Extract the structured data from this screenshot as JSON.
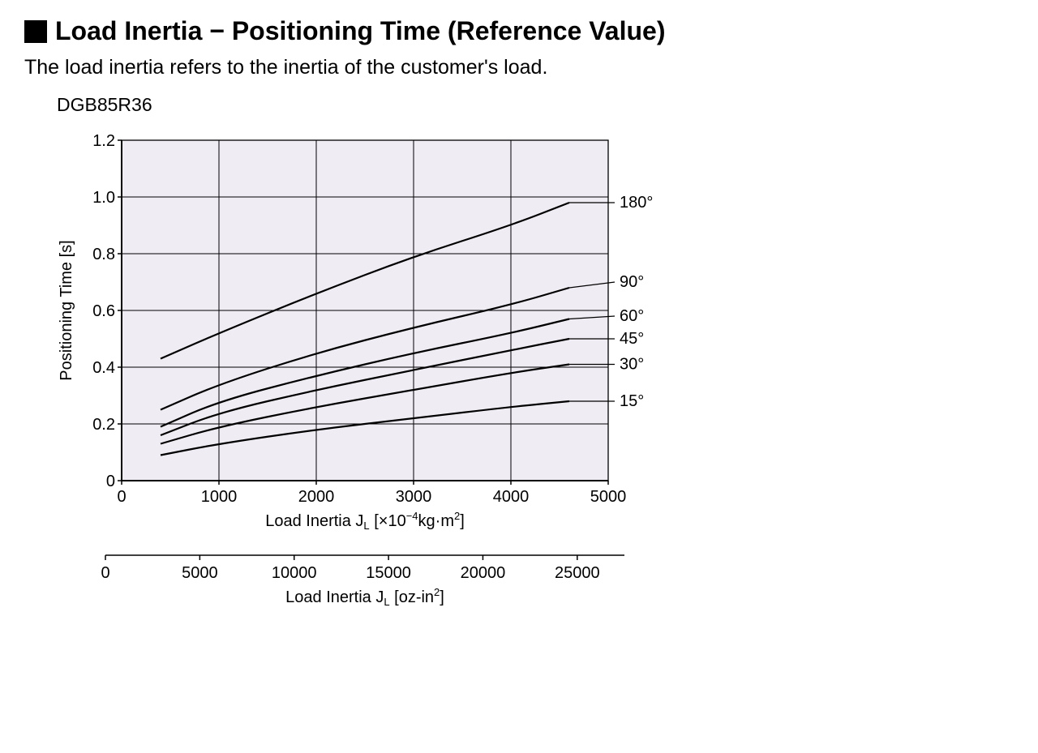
{
  "title": "Load Inertia − Positioning Time (Reference Value)",
  "subtitle": "The load inertia refers to the inertia of the customer's load.",
  "model": "DGB85R36",
  "chart": {
    "type": "line",
    "background_color": "#f0ecf3",
    "grid_color": "#000000",
    "axis_color": "#000000",
    "line_color": "#000000",
    "line_width": 2.2,
    "ylabel": "Positioning Time [s]",
    "ylabel_fontsize": 20,
    "ylim": [
      0,
      1.2
    ],
    "yticks": [
      0,
      0.2,
      0.4,
      0.6,
      0.8,
      1.0,
      1.2
    ],
    "ytick_labels": [
      "0",
      "0.2",
      "0.4",
      "0.6",
      "0.8",
      "1.0",
      "1.2"
    ],
    "tick_fontsize": 20,
    "x_primary": {
      "label": "Load Inertia JL [×10⁻⁴kg·m²]",
      "label_fontsize": 20,
      "lim": [
        0,
        5000
      ],
      "ticks": [
        0,
        1000,
        2000,
        3000,
        4000,
        5000
      ],
      "tick_labels": [
        "0",
        "1000",
        "2000",
        "3000",
        "4000",
        "5000"
      ]
    },
    "x_secondary": {
      "label": "Load Inertia JL [oz-in²]",
      "label_fontsize": 20,
      "lim": [
        0,
        27500
      ],
      "ticks": [
        0,
        5000,
        10000,
        15000,
        20000,
        25000
      ],
      "tick_labels": [
        "0",
        "5000",
        "10000",
        "15000",
        "20000",
        "25000"
      ]
    },
    "series": [
      {
        "label": "180°",
        "label_y": 0.98,
        "points": [
          [
            400,
            0.43
          ],
          [
            1000,
            0.52
          ],
          [
            2000,
            0.66
          ],
          [
            3000,
            0.79
          ],
          [
            4000,
            0.9
          ],
          [
            4600,
            0.98
          ]
        ]
      },
      {
        "label": "90°",
        "label_y": 0.7,
        "points": [
          [
            400,
            0.25
          ],
          [
            1000,
            0.34
          ],
          [
            2000,
            0.45
          ],
          [
            3000,
            0.54
          ],
          [
            4000,
            0.62
          ],
          [
            4600,
            0.68
          ]
        ]
      },
      {
        "label": "60°",
        "label_y": 0.58,
        "points": [
          [
            400,
            0.19
          ],
          [
            1000,
            0.28
          ],
          [
            2000,
            0.37
          ],
          [
            3000,
            0.45
          ],
          [
            4000,
            0.52
          ],
          [
            4600,
            0.57
          ]
        ]
      },
      {
        "label": "45°",
        "label_y": 0.5,
        "points": [
          [
            400,
            0.16
          ],
          [
            1000,
            0.24
          ],
          [
            2000,
            0.32
          ],
          [
            3000,
            0.39
          ],
          [
            4000,
            0.46
          ],
          [
            4600,
            0.5
          ]
        ]
      },
      {
        "label": "30°",
        "label_y": 0.41,
        "points": [
          [
            400,
            0.13
          ],
          [
            1000,
            0.19
          ],
          [
            2000,
            0.26
          ],
          [
            3000,
            0.32
          ],
          [
            4000,
            0.38
          ],
          [
            4600,
            0.41
          ]
        ]
      },
      {
        "label": "15°",
        "label_y": 0.28,
        "points": [
          [
            400,
            0.09
          ],
          [
            1000,
            0.13
          ],
          [
            2000,
            0.18
          ],
          [
            3000,
            0.22
          ],
          [
            4000,
            0.26
          ],
          [
            4600,
            0.28
          ]
        ]
      }
    ]
  }
}
